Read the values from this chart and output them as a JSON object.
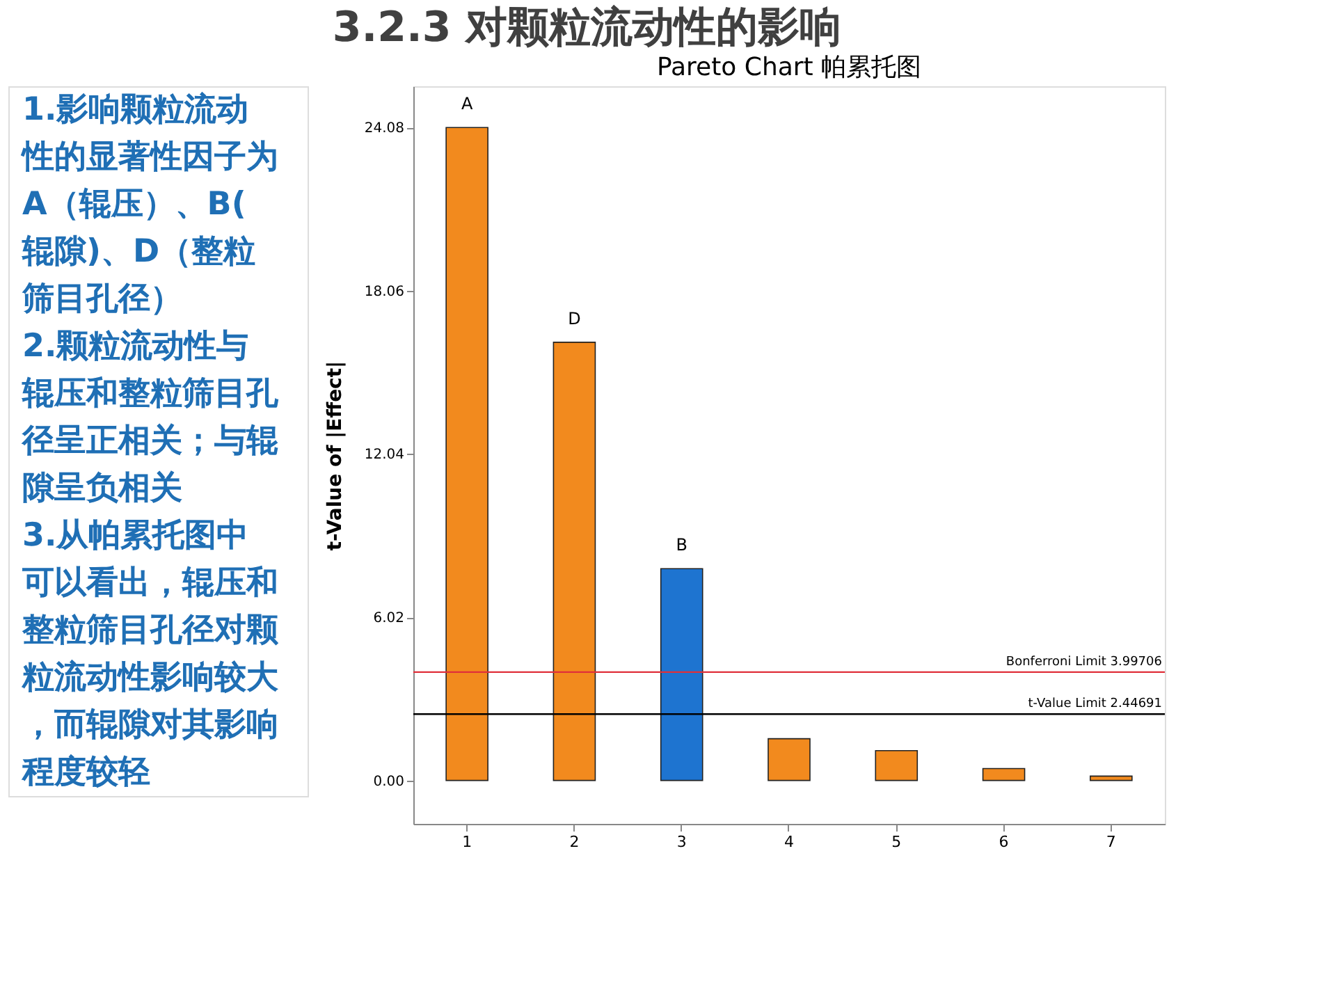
{
  "chart_data": {
    "type": "bar",
    "title": "3.2.3 对颗粒流动性的影响",
    "subtitle": "Pareto Chart  帕累托图",
    "ylabel": "t-Value of |Effect|",
    "categories": [
      "1",
      "2",
      "3",
      "4",
      "5",
      "6",
      "7"
    ],
    "values": [
      24.08,
      16.16,
      7.81,
      1.54,
      1.1,
      0.44,
      0.16
    ],
    "colors": [
      "#f28a1e",
      "#f28a1e",
      "#1e74d0",
      "#f28a1e",
      "#f28a1e",
      "#f28a1e",
      "#f28a1e"
    ],
    "ylim": [
      -1.6,
      25.6
    ],
    "yticks": [
      {
        "value": 0,
        "label": "0.00"
      },
      6.02,
      12.04,
      18.06,
      24.08
    ],
    "ref_lines": [
      {
        "axis": "y",
        "value": 3.99706,
        "label": "Bonferroni Limit 3.99706",
        "color": "#e0303a"
      },
      {
        "axis": "y",
        "value": 2.44691,
        "label": "t-Value Limit 2.44691",
        "color": "#000000"
      }
    ],
    "annotations": [
      {
        "text": "A",
        "x": "1",
        "y": 24.08
      },
      {
        "text": "D",
        "x": "2",
        "y": 16.16
      },
      {
        "text": "B",
        "x": "3",
        "y": 7.81
      },
      "1.影响颗粒流动性的显著性因子为A（辊压）、B(辊隙)、D（整粒筛目孔径）",
      "2.颗粒流动性与辊压和整粒筛目孔径呈正相关；与辊隙呈负相关",
      "3.从帕累托图中可以看出，辊压和整粒筛目孔径对颗粒流动性影响较大，而辊隙对其影响程度较轻"
    ],
    "grid": false
  }
}
